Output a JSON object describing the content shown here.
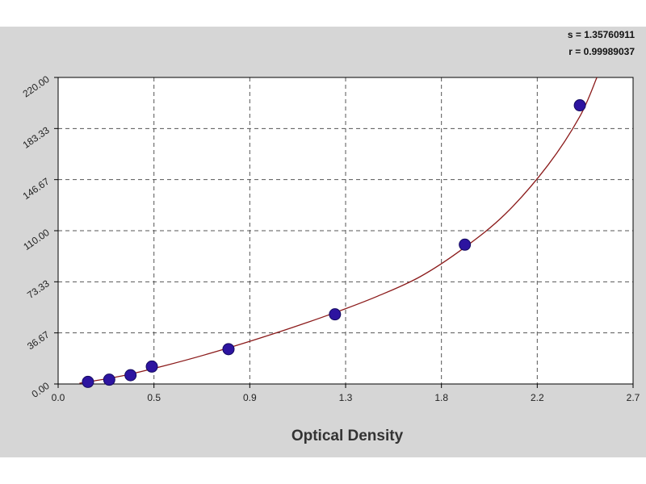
{
  "stats": {
    "s_line": "s = 1.35760911",
    "r_line": "r = 0.99989037"
  },
  "chart_data": {
    "type": "scatter",
    "xlabel": "Optical Density",
    "ylabel": "",
    "xlim": [
      0.0,
      2.7
    ],
    "ylim": [
      0.0,
      220.0
    ],
    "x_ticks": [
      "0.0",
      "0.5",
      "0.9",
      "1.3",
      "1.8",
      "2.2",
      "2.7"
    ],
    "y_ticks": [
      "0.00",
      "36.67",
      "73.33",
      "110.00",
      "146.67",
      "183.33",
      "220.00"
    ],
    "grid": true,
    "series": [
      {
        "kind": "points",
        "x": [
          0.14,
          0.24,
          0.34,
          0.44,
          0.8,
          1.3,
          1.91,
          2.45
        ],
        "y": [
          1.5,
          3.1,
          6.3,
          12.5,
          25.0,
          50.0,
          100.0,
          200.0
        ]
      },
      {
        "kind": "fit-curve",
        "x": [
          0.1,
          0.3,
          0.5,
          0.7,
          0.9,
          1.1,
          1.3,
          1.5,
          1.7,
          1.9,
          2.1,
          2.3,
          2.45,
          2.53
        ],
        "y": [
          0.5,
          5.8,
          13.1,
          21.4,
          30.6,
          40.5,
          51.2,
          63.0,
          77.0,
          97.0,
          122.0,
          157.0,
          192.0,
          220.0
        ]
      }
    ],
    "colors": {
      "background": "#d6d6d6",
      "plot_area": "#ffffff",
      "points": "#2d14a0",
      "curve": "#8b1a1a",
      "grid": "#555555"
    }
  }
}
